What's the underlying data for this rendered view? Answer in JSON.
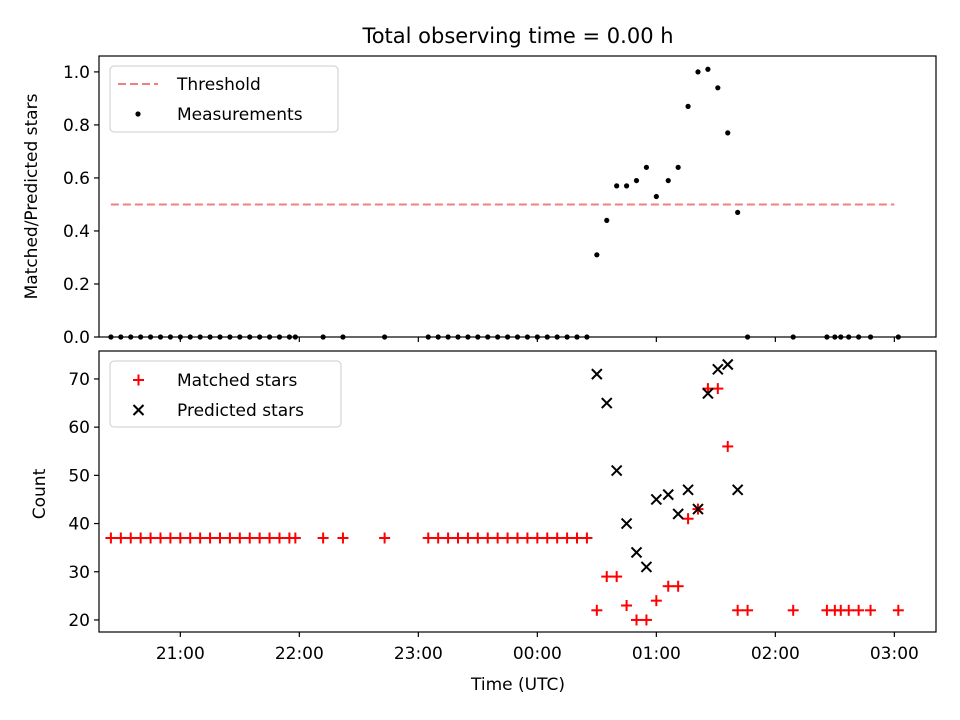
{
  "figure": {
    "title": "Total observing time = 0.00 h",
    "xlabel": "Time (UTC)",
    "xticks": [
      {
        "label": "21:00",
        "h": 21.0
      },
      {
        "label": "22:00",
        "h": 22.0
      },
      {
        "label": "23:00",
        "h": 23.0
      },
      {
        "label": "00:00",
        "h": 24.0
      },
      {
        "label": "01:00",
        "h": 25.0
      },
      {
        "label": "02:00",
        "h": 26.0
      },
      {
        "label": "03:00",
        "h": 27.0
      }
    ]
  },
  "chart_data": [
    {
      "type": "scatter",
      "ylabel": "Matched/Predicted stars",
      "xlim": [
        "20:19",
        "03:21"
      ],
      "ylim": [
        0,
        1.06
      ],
      "yticks": [
        0.0,
        0.2,
        0.4,
        0.6,
        0.8,
        1.0
      ],
      "legend": "top-left",
      "threshold": {
        "name": "Threshold",
        "value": 0.5,
        "x_start": "20:25",
        "x_end": "03:00",
        "color": "#f08080"
      },
      "series": [
        {
          "name": "Measurements",
          "color": "#000000",
          "marker": "dot",
          "points": [
            [
              "20:25",
              0
            ],
            [
              "20:30",
              0
            ],
            [
              "20:35",
              0
            ],
            [
              "20:40",
              0
            ],
            [
              "20:45",
              0
            ],
            [
              "20:50",
              0
            ],
            [
              "20:55",
              0
            ],
            [
              "21:00",
              0
            ],
            [
              "21:05",
              0
            ],
            [
              "21:10",
              0
            ],
            [
              "21:15",
              0
            ],
            [
              "21:20",
              0
            ],
            [
              "21:25",
              0
            ],
            [
              "21:30",
              0
            ],
            [
              "21:35",
              0
            ],
            [
              "21:40",
              0
            ],
            [
              "21:45",
              0
            ],
            [
              "21:50",
              0
            ],
            [
              "21:55",
              0
            ],
            [
              "21:58",
              0
            ],
            [
              "22:12",
              0
            ],
            [
              "22:22",
              0
            ],
            [
              "22:43",
              0
            ],
            [
              "23:05",
              0
            ],
            [
              "23:10",
              0
            ],
            [
              "23:15",
              0
            ],
            [
              "23:20",
              0
            ],
            [
              "23:25",
              0
            ],
            [
              "23:30",
              0
            ],
            [
              "23:35",
              0
            ],
            [
              "23:40",
              0
            ],
            [
              "23:45",
              0
            ],
            [
              "23:50",
              0
            ],
            [
              "23:55",
              0
            ],
            [
              "00:00",
              0
            ],
            [
              "00:05",
              0
            ],
            [
              "00:10",
              0
            ],
            [
              "00:15",
              0
            ],
            [
              "00:20",
              0
            ],
            [
              "00:25",
              0
            ],
            [
              "00:30",
              0.31
            ],
            [
              "00:35",
              0.44
            ],
            [
              "00:40",
              0.57
            ],
            [
              "00:45",
              0.57
            ],
            [
              "00:50",
              0.59
            ],
            [
              "00:55",
              0.64
            ],
            [
              "01:00",
              0.53
            ],
            [
              "01:06",
              0.59
            ],
            [
              "01:11",
              0.64
            ],
            [
              "01:16",
              0.87
            ],
            [
              "01:21",
              1.0
            ],
            [
              "01:26",
              1.01
            ],
            [
              "01:31",
              0.94
            ],
            [
              "01:36",
              0.77
            ],
            [
              "01:41",
              0.47
            ],
            [
              "01:46",
              0
            ],
            [
              "02:09",
              0
            ],
            [
              "02:26",
              0
            ],
            [
              "02:30",
              0
            ],
            [
              "02:33",
              0
            ],
            [
              "02:37",
              0
            ],
            [
              "02:42",
              0
            ],
            [
              "02:48",
              0
            ],
            [
              "03:02",
              0
            ]
          ]
        }
      ]
    },
    {
      "type": "scatter",
      "ylabel": "Count",
      "xlabel": "Time (UTC)",
      "xlim": [
        "20:19",
        "03:21"
      ],
      "ylim": [
        17.5,
        75.8
      ],
      "yticks": [
        20,
        30,
        40,
        50,
        60,
        70
      ],
      "legend": "top-left",
      "series": [
        {
          "name": "Matched stars",
          "color": "#ff0000",
          "marker": "plus",
          "points": [
            [
              "20:25",
              37
            ],
            [
              "20:30",
              37
            ],
            [
              "20:35",
              37
            ],
            [
              "20:40",
              37
            ],
            [
              "20:45",
              37
            ],
            [
              "20:50",
              37
            ],
            [
              "20:55",
              37
            ],
            [
              "21:00",
              37
            ],
            [
              "21:05",
              37
            ],
            [
              "21:10",
              37
            ],
            [
              "21:15",
              37
            ],
            [
              "21:20",
              37
            ],
            [
              "21:25",
              37
            ],
            [
              "21:30",
              37
            ],
            [
              "21:35",
              37
            ],
            [
              "21:40",
              37
            ],
            [
              "21:45",
              37
            ],
            [
              "21:50",
              37
            ],
            [
              "21:55",
              37
            ],
            [
              "21:58",
              37
            ],
            [
              "22:12",
              37
            ],
            [
              "22:22",
              37
            ],
            [
              "22:43",
              37
            ],
            [
              "23:05",
              37
            ],
            [
              "23:10",
              37
            ],
            [
              "23:15",
              37
            ],
            [
              "23:20",
              37
            ],
            [
              "23:25",
              37
            ],
            [
              "23:30",
              37
            ],
            [
              "23:35",
              37
            ],
            [
              "23:40",
              37
            ],
            [
              "23:45",
              37
            ],
            [
              "23:50",
              37
            ],
            [
              "23:55",
              37
            ],
            [
              "00:00",
              37
            ],
            [
              "00:05",
              37
            ],
            [
              "00:10",
              37
            ],
            [
              "00:15",
              37
            ],
            [
              "00:20",
              37
            ],
            [
              "00:25",
              37
            ],
            [
              "00:30",
              22
            ],
            [
              "00:35",
              29
            ],
            [
              "00:40",
              29
            ],
            [
              "00:45",
              23
            ],
            [
              "00:50",
              20
            ],
            [
              "00:55",
              20
            ],
            [
              "01:00",
              24
            ],
            [
              "01:06",
              27
            ],
            [
              "01:11",
              27
            ],
            [
              "01:16",
              41
            ],
            [
              "01:21",
              43
            ],
            [
              "01:26",
              68
            ],
            [
              "01:31",
              68
            ],
            [
              "01:36",
              56
            ],
            [
              "01:41",
              22
            ],
            [
              "01:46",
              22
            ],
            [
              "02:09",
              22
            ],
            [
              "02:26",
              22
            ],
            [
              "02:30",
              22
            ],
            [
              "02:33",
              22
            ],
            [
              "02:37",
              22
            ],
            [
              "02:42",
              22
            ],
            [
              "02:48",
              22
            ],
            [
              "03:02",
              22
            ]
          ]
        },
        {
          "name": "Predicted stars",
          "color": "#000000",
          "marker": "x",
          "points": [
            [
              "00:30",
              71
            ],
            [
              "00:35",
              65
            ],
            [
              "00:40",
              51
            ],
            [
              "00:45",
              40
            ],
            [
              "00:50",
              34
            ],
            [
              "00:55",
              31
            ],
            [
              "01:00",
              45
            ],
            [
              "01:06",
              46
            ],
            [
              "01:11",
              42
            ],
            [
              "01:16",
              47
            ],
            [
              "01:21",
              43
            ],
            [
              "01:26",
              67
            ],
            [
              "01:31",
              72
            ],
            [
              "01:36",
              73
            ],
            [
              "01:41",
              47
            ]
          ]
        }
      ]
    }
  ]
}
